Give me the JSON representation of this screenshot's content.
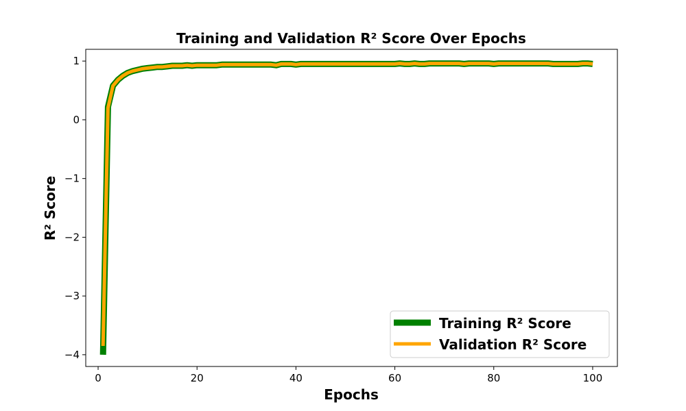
{
  "chart_data": {
    "type": "line",
    "title": "Training and Validation R² Score Over Epochs",
    "xlabel": "Epochs",
    "ylabel": "R² Score",
    "xlim": [
      -2.5,
      105
    ],
    "ylim": [
      -4.2,
      1.2
    ],
    "x_ticks": [
      0,
      20,
      40,
      60,
      80,
      100
    ],
    "y_ticks": [
      1,
      0,
      -1,
      -2,
      -3,
      -4
    ],
    "y_tick_labels": [
      "1",
      "0",
      "−1",
      "−2",
      "−3",
      "−4"
    ],
    "legend_position": "lower-right",
    "grid": false,
    "series": [
      {
        "name": "Training R² Score",
        "color": "#008000",
        "x": [
          1,
          2,
          3,
          4,
          5,
          6,
          7,
          8,
          9,
          10,
          11,
          12,
          13,
          14,
          15,
          16,
          17,
          18,
          19,
          20,
          21,
          22,
          23,
          24,
          25,
          26,
          27,
          28,
          29,
          30,
          31,
          32,
          33,
          34,
          35,
          36,
          37,
          38,
          39,
          40,
          41,
          42,
          43,
          44,
          45,
          46,
          47,
          48,
          49,
          50,
          51,
          52,
          53,
          54,
          55,
          56,
          57,
          58,
          59,
          60,
          61,
          62,
          63,
          64,
          65,
          66,
          67,
          68,
          69,
          70,
          71,
          72,
          73,
          74,
          75,
          76,
          77,
          78,
          79,
          80,
          81,
          82,
          83,
          84,
          85,
          86,
          87,
          88,
          89,
          90,
          91,
          92,
          93,
          94,
          95,
          96,
          97,
          98,
          99,
          100
        ],
        "values": [
          -4.0,
          0.22,
          0.58,
          0.68,
          0.75,
          0.8,
          0.83,
          0.85,
          0.87,
          0.88,
          0.89,
          0.9,
          0.9,
          0.91,
          0.92,
          0.92,
          0.92,
          0.93,
          0.92,
          0.93,
          0.93,
          0.93,
          0.93,
          0.93,
          0.94,
          0.94,
          0.94,
          0.94,
          0.94,
          0.94,
          0.94,
          0.94,
          0.94,
          0.94,
          0.94,
          0.93,
          0.95,
          0.95,
          0.95,
          0.94,
          0.95,
          0.95,
          0.95,
          0.95,
          0.95,
          0.95,
          0.95,
          0.95,
          0.95,
          0.95,
          0.95,
          0.95,
          0.95,
          0.95,
          0.95,
          0.95,
          0.95,
          0.95,
          0.95,
          0.95,
          0.96,
          0.95,
          0.95,
          0.96,
          0.95,
          0.95,
          0.96,
          0.96,
          0.96,
          0.96,
          0.96,
          0.96,
          0.96,
          0.95,
          0.96,
          0.96,
          0.96,
          0.96,
          0.96,
          0.95,
          0.96,
          0.96,
          0.96,
          0.96,
          0.96,
          0.96,
          0.96,
          0.96,
          0.96,
          0.96,
          0.96,
          0.95,
          0.95,
          0.95,
          0.95,
          0.95,
          0.95,
          0.96,
          0.96,
          0.95
        ]
      },
      {
        "name": "Validation R² Score",
        "color": "#FFA500",
        "x": [
          1,
          2,
          3,
          4,
          5,
          6,
          7,
          8,
          9,
          10,
          11,
          12,
          13,
          14,
          15,
          16,
          17,
          18,
          19,
          20,
          21,
          22,
          23,
          24,
          25,
          26,
          27,
          28,
          29,
          30,
          31,
          32,
          33,
          34,
          35,
          36,
          37,
          38,
          39,
          40,
          41,
          42,
          43,
          44,
          45,
          46,
          47,
          48,
          49,
          50,
          51,
          52,
          53,
          54,
          55,
          56,
          57,
          58,
          59,
          60,
          61,
          62,
          63,
          64,
          65,
          66,
          67,
          68,
          69,
          70,
          71,
          72,
          73,
          74,
          75,
          76,
          77,
          78,
          79,
          80,
          81,
          82,
          83,
          84,
          85,
          86,
          87,
          88,
          89,
          90,
          91,
          92,
          93,
          94,
          95,
          96,
          97,
          98,
          99,
          100
        ],
        "values": [
          -3.85,
          0.2,
          0.58,
          0.68,
          0.75,
          0.8,
          0.83,
          0.85,
          0.87,
          0.88,
          0.89,
          0.9,
          0.9,
          0.91,
          0.92,
          0.92,
          0.92,
          0.93,
          0.92,
          0.93,
          0.93,
          0.93,
          0.93,
          0.93,
          0.94,
          0.94,
          0.94,
          0.94,
          0.94,
          0.94,
          0.94,
          0.94,
          0.94,
          0.94,
          0.94,
          0.93,
          0.95,
          0.95,
          0.95,
          0.94,
          0.95,
          0.95,
          0.95,
          0.95,
          0.95,
          0.95,
          0.95,
          0.95,
          0.95,
          0.95,
          0.95,
          0.95,
          0.95,
          0.95,
          0.95,
          0.95,
          0.95,
          0.95,
          0.95,
          0.95,
          0.96,
          0.95,
          0.95,
          0.96,
          0.95,
          0.95,
          0.96,
          0.96,
          0.96,
          0.96,
          0.96,
          0.96,
          0.96,
          0.95,
          0.96,
          0.96,
          0.96,
          0.96,
          0.96,
          0.95,
          0.96,
          0.96,
          0.96,
          0.96,
          0.96,
          0.96,
          0.96,
          0.96,
          0.96,
          0.96,
          0.96,
          0.95,
          0.95,
          0.95,
          0.95,
          0.95,
          0.95,
          0.96,
          0.96,
          0.95
        ]
      }
    ]
  }
}
